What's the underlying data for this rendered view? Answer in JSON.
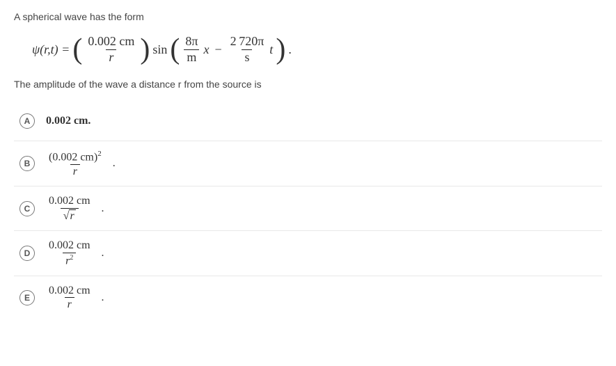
{
  "question_intro": "A spherical wave has the form",
  "equation": {
    "lhs": "ψ(r,t) =",
    "coef_num": "0.002 cm",
    "coef_den": "r",
    "func": "sin",
    "arg1_num": "8π",
    "arg1_den": "m",
    "arg1_var": "x",
    "minus": "−",
    "arg2_num": "2 720π",
    "arg2_den": "s",
    "arg2_var": "t"
  },
  "sub_question": "The amplitude of the wave a distance r from the source is",
  "options": {
    "A": {
      "letter": "A",
      "text_plain": "0.002 cm."
    },
    "B": {
      "letter": "B",
      "num": "(0.002 cm)",
      "sup": "2",
      "den": "r"
    },
    "C": {
      "letter": "C",
      "num": "0.002 cm",
      "den_radicand": "r"
    },
    "D": {
      "letter": "D",
      "num": "0.002 cm",
      "den_base": "r",
      "den_sup": "2"
    },
    "E": {
      "letter": "E",
      "num": "0.002 cm",
      "den": "r"
    }
  },
  "style": {
    "text_color": "#444444",
    "border_color": "#e8e8e8",
    "circle_border": "#777777",
    "font_main": "Arial, Helvetica, sans-serif",
    "font_math": "Times New Roman, serif"
  }
}
